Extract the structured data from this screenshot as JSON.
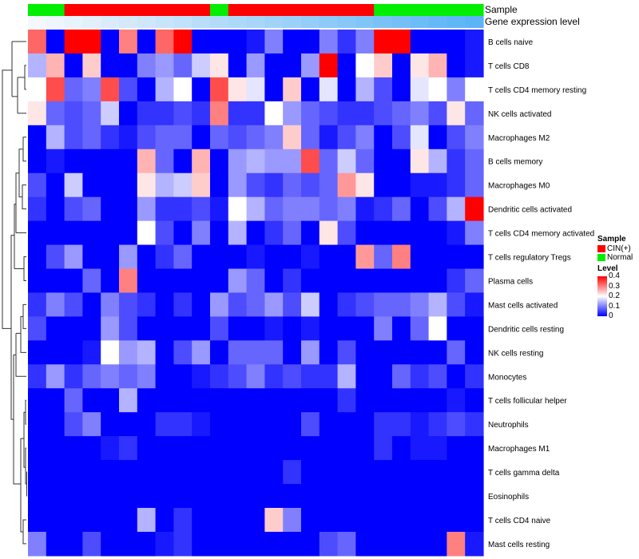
{
  "chart_data": {
    "type": "heatmap",
    "annotations": [
      {
        "name": "Sample",
        "values": [
          "Normal",
          "Normal",
          "CIN(+)",
          "CIN(+)",
          "CIN(+)",
          "CIN(+)",
          "CIN(+)",
          "CIN(+)",
          "CIN(+)",
          "CIN(+)",
          "Normal",
          "CIN(+)",
          "CIN(+)",
          "CIN(+)",
          "CIN(+)",
          "CIN(+)",
          "CIN(+)",
          "CIN(+)",
          "CIN(+)",
          "Normal",
          "Normal",
          "Normal",
          "Normal",
          "Normal",
          "Normal"
        ]
      },
      {
        "name": "Gene expression level",
        "values": [
          0,
          0.04,
          0.08,
          0.12,
          0.17,
          0.21,
          0.25,
          0.29,
          0.33,
          0.38,
          0.42,
          0.46,
          0.5,
          0.54,
          0.58,
          0.63,
          0.67,
          0.71,
          0.75,
          0.79,
          0.83,
          0.88,
          0.92,
          0.96,
          1.0
        ]
      }
    ],
    "rows": [
      "B cells naive",
      "T cells CD8",
      "T cells CD4 memory resting",
      "NK cells activated",
      "Macrophages M2",
      "B cells memory",
      "Macrophages M0",
      "Dendritic cells activated",
      "T cells CD4 memory activated",
      "T cells regulatory  Tregs",
      "Plasma cells",
      "Mast cells activated",
      "Dendritic cells resting",
      "NK cells resting",
      "Monocytes",
      "T cells follicular helper",
      "Neutrophils",
      "Macrophages M1",
      "T cells gamma delta",
      "Eosinophils",
      "T cells CD4 naive",
      "Mast cells resting"
    ],
    "values": [
      [
        0.32,
        0.0,
        0.4,
        0.4,
        0.0,
        0.3,
        0.0,
        0.32,
        0.4,
        0.0,
        0.0,
        0.0,
        0.02,
        0.1,
        0.0,
        0.0,
        0.1,
        0.04,
        0.1,
        0.4,
        0.4,
        0.0,
        0.0,
        0.0,
        0.02
      ],
      [
        0.14,
        0.26,
        0.0,
        0.24,
        0.0,
        0.0,
        0.1,
        0.12,
        0.08,
        0.16,
        0.22,
        0.0,
        0.12,
        0.0,
        0.0,
        0.12,
        0.4,
        0.0,
        0.2,
        0.24,
        0.0,
        0.22,
        0.26,
        0.0,
        0.02
      ],
      [
        0.2,
        0.34,
        0.08,
        0.1,
        0.34,
        0.06,
        0.0,
        0.14,
        0.2,
        0.0,
        0.34,
        0.22,
        0.18,
        0.0,
        0.24,
        0.0,
        0.18,
        0.0,
        0.14,
        0.06,
        0.0,
        0.18,
        0.2,
        0.1,
        0.2
      ],
      [
        0.22,
        0.08,
        0.06,
        0.08,
        0.16,
        0.0,
        0.04,
        0.04,
        0.06,
        0.04,
        0.3,
        0.04,
        0.04,
        0.2,
        0.12,
        0.08,
        0.06,
        0.04,
        0.04,
        0.06,
        0.08,
        0.1,
        0.06,
        0.22,
        0.08
      ],
      [
        0.0,
        0.14,
        0.06,
        0.08,
        0.04,
        0.02,
        0.06,
        0.08,
        0.08,
        0.0,
        0.08,
        0.06,
        0.08,
        0.1,
        0.24,
        0.08,
        0.02,
        0.06,
        0.1,
        0.0,
        0.06,
        0.18,
        0.0,
        0.06,
        0.1
      ],
      [
        0.0,
        0.02,
        0.0,
        0.0,
        0.0,
        0.0,
        0.26,
        0.08,
        0.0,
        0.26,
        0.0,
        0.12,
        0.14,
        0.12,
        0.12,
        0.34,
        0.08,
        0.16,
        0.08,
        0.0,
        0.0,
        0.22,
        0.14,
        0.04,
        0.08
      ],
      [
        0.06,
        0.0,
        0.16,
        0.0,
        0.0,
        0.0,
        0.22,
        0.14,
        0.16,
        0.24,
        0.0,
        0.12,
        0.06,
        0.04,
        0.08,
        0.06,
        0.08,
        0.28,
        0.22,
        0.0,
        0.0,
        0.02,
        0.02,
        0.04,
        0.08
      ],
      [
        0.04,
        0.0,
        0.06,
        0.08,
        0.0,
        0.0,
        0.12,
        0.04,
        0.04,
        0.06,
        0.02,
        0.2,
        0.14,
        0.08,
        0.1,
        0.1,
        0.08,
        0.1,
        0.02,
        0.04,
        0.08,
        0.0,
        0.06,
        0.14,
        0.4
      ],
      [
        0.0,
        0.0,
        0.0,
        0.0,
        0.0,
        0.0,
        0.2,
        0.06,
        0.0,
        0.1,
        0.0,
        0.14,
        0.0,
        0.04,
        0.08,
        0.0,
        0.22,
        0.06,
        0.0,
        0.0,
        0.0,
        0.0,
        0.0,
        0.02,
        0.1
      ],
      [
        0.0,
        0.06,
        0.12,
        0.0,
        0.0,
        0.12,
        0.0,
        0.04,
        0.08,
        0.0,
        0.0,
        0.0,
        0.02,
        0.0,
        0.0,
        0.02,
        0.0,
        0.0,
        0.28,
        0.08,
        0.3,
        0.0,
        0.0,
        0.0,
        0.0
      ],
      [
        0.0,
        0.0,
        0.0,
        0.08,
        0.0,
        0.3,
        0.0,
        0.0,
        0.0,
        0.0,
        0.0,
        0.12,
        0.08,
        0.0,
        0.04,
        0.0,
        0.0,
        0.0,
        0.0,
        0.0,
        0.0,
        0.0,
        0.0,
        0.04,
        0.08
      ],
      [
        0.04,
        0.1,
        0.06,
        0.0,
        0.1,
        0.06,
        0.04,
        0.0,
        0.04,
        0.0,
        0.12,
        0.06,
        0.08,
        0.12,
        0.06,
        0.16,
        0.0,
        0.04,
        0.06,
        0.08,
        0.08,
        0.1,
        0.14,
        0.06,
        0.02
      ],
      [
        0.06,
        0.0,
        0.0,
        0.0,
        0.12,
        0.06,
        0.0,
        0.0,
        0.0,
        0.0,
        0.06,
        0.0,
        0.0,
        0.02,
        0.0,
        0.02,
        0.0,
        0.0,
        0.0,
        0.1,
        0.0,
        0.08,
        0.2,
        0.0,
        0.0
      ],
      [
        0.0,
        0.0,
        0.0,
        0.02,
        0.2,
        0.12,
        0.14,
        0.0,
        0.06,
        0.12,
        0.0,
        0.08,
        0.08,
        0.08,
        0.0,
        0.12,
        0.0,
        0.06,
        0.0,
        0.0,
        0.0,
        0.0,
        0.0,
        0.08,
        0.0
      ],
      [
        0.04,
        0.12,
        0.04,
        0.08,
        0.1,
        0.08,
        0.1,
        0.0,
        0.0,
        0.02,
        0.04,
        0.06,
        0.1,
        0.04,
        0.06,
        0.04,
        0.04,
        0.14,
        0.0,
        0.0,
        0.08,
        0.04,
        0.06,
        0.0,
        0.04
      ],
      [
        0.0,
        0.0,
        0.08,
        0.0,
        0.0,
        0.14,
        0.0,
        0.0,
        0.0,
        0.0,
        0.0,
        0.0,
        0.0,
        0.0,
        0.0,
        0.0,
        0.0,
        0.04,
        0.0,
        0.0,
        0.0,
        0.0,
        0.0,
        0.02,
        0.0
      ],
      [
        0.0,
        0.0,
        0.06,
        0.1,
        0.0,
        0.0,
        0.0,
        0.04,
        0.04,
        0.02,
        0.0,
        0.0,
        0.0,
        0.0,
        0.0,
        0.06,
        0.0,
        0.0,
        0.0,
        0.04,
        0.04,
        0.02,
        0.04,
        0.06,
        0.04
      ],
      [
        0.0,
        0.0,
        0.0,
        0.0,
        0.02,
        0.04,
        0.0,
        0.0,
        0.0,
        0.0,
        0.0,
        0.0,
        0.0,
        0.0,
        0.0,
        0.0,
        0.0,
        0.0,
        0.0,
        0.04,
        0.0,
        0.02,
        0.02,
        0.0,
        0.0
      ],
      [
        0.0,
        0.0,
        0.0,
        0.0,
        0.0,
        0.0,
        0.0,
        0.0,
        0.0,
        0.0,
        0.0,
        0.0,
        0.0,
        0.0,
        0.04,
        0.0,
        0.0,
        0.0,
        0.0,
        0.0,
        0.0,
        0.0,
        0.0,
        0.0,
        0.0
      ],
      [
        0.0,
        0.0,
        0.0,
        0.0,
        0.0,
        0.0,
        0.0,
        0.0,
        0.0,
        0.0,
        0.0,
        0.0,
        0.0,
        0.0,
        0.0,
        0.0,
        0.0,
        0.0,
        0.0,
        0.0,
        0.0,
        0.0,
        0.0,
        0.0,
        0.0
      ],
      [
        0.0,
        0.0,
        0.0,
        0.0,
        0.0,
        0.0,
        0.14,
        0.0,
        0.04,
        0.0,
        0.0,
        0.0,
        0.0,
        0.24,
        0.1,
        0.0,
        0.0,
        0.0,
        0.0,
        0.0,
        0.0,
        0.0,
        0.0,
        0.0,
        0.0
      ],
      [
        0.1,
        0.0,
        0.0,
        0.06,
        0.0,
        0.0,
        0.0,
        0.02,
        0.04,
        0.0,
        0.0,
        0.0,
        0.0,
        0.0,
        0.0,
        0.0,
        0.06,
        0.08,
        0.0,
        0.0,
        0.0,
        0.0,
        0.0,
        0.3,
        0.02
      ]
    ],
    "legend": {
      "sample_title": "Sample",
      "sample_items": [
        {
          "label": "CIN(+)",
          "color": "#ff0000"
        },
        {
          "label": "Normal",
          "color": "#00ee00"
        }
      ],
      "level_title": "Level",
      "level_ticks": [
        {
          "label": "0.4",
          "value": 0.4
        },
        {
          "label": "0.3",
          "value": 0.3
        },
        {
          "label": "0.2",
          "value": 0.2
        },
        {
          "label": "0.1",
          "value": 0.1
        },
        {
          "label": "0",
          "value": 0.0
        }
      ]
    },
    "colorscale": {
      "low": "#0000ff",
      "mid": "#ffffff",
      "high": "#ff0000",
      "min": 0,
      "mid_value": 0.2,
      "max": 0.4
    },
    "gene_level_colors": {
      "low": "#f4f8fc",
      "high": "#5ab4f5"
    },
    "dendrogram": "row clustering tree on the left"
  }
}
